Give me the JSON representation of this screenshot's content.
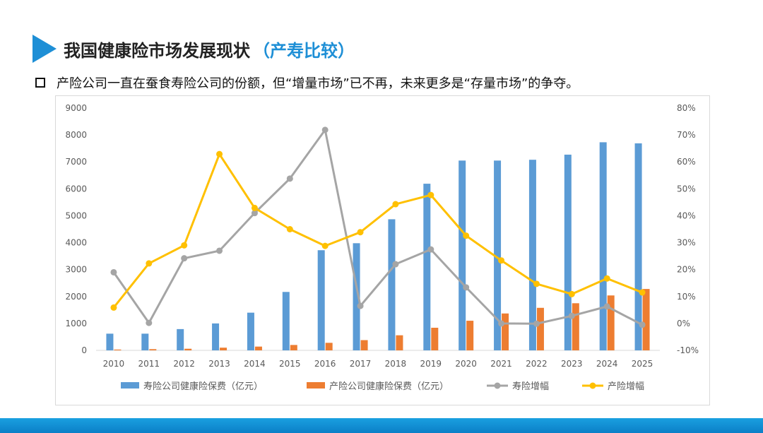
{
  "header": {
    "title": "我国健康险市场发展现状",
    "title_paren": "（产寿比较）",
    "bullet": "产险公司一直在蚕食寿险公司的份额，但“增量市场”已不再，未来更多是“存量市场”的争夺。"
  },
  "colors": {
    "accent": "#1e8fd6",
    "life_bar": "#5b9bd5",
    "pc_bar": "#ed7d31",
    "life_growth": "#a5a5a5",
    "pc_growth": "#ffc000"
  },
  "chart_data": {
    "type": "bar",
    "categories": [
      "2010",
      "2011",
      "2012",
      "2013",
      "2014",
      "2015",
      "2016",
      "2017",
      "2018",
      "2019",
      "2020",
      "2021",
      "2022",
      "2023",
      "2024",
      "2025"
    ],
    "y_left": {
      "min": 0,
      "max": 9000,
      "ticks": [
        "0",
        "1000",
        "2000",
        "3000",
        "4000",
        "5000",
        "6000",
        "7000",
        "8000",
        "9000"
      ]
    },
    "y_right": {
      "min": -0.1,
      "max": 0.8,
      "ticks": [
        "-10%",
        "0%",
        "10%",
        "20%",
        "30%",
        "40%",
        "50%",
        "60%",
        "70%",
        "80%"
      ]
    },
    "grid": false,
    "legend_position": "bottom",
    "series": [
      {
        "name": "寿险公司健康险保费（亿元）",
        "kind": "bar",
        "axis": "left",
        "values": [
          620,
          620,
          790,
          1000,
          1400,
          2170,
          3720,
          3980,
          4870,
          6190,
          7050,
          7050,
          7080,
          7270,
          7730,
          7690
        ]
      },
      {
        "name": "产险公司健康险保费（亿元）",
        "kind": "bar",
        "axis": "left",
        "values": [
          30,
          45,
          60,
          100,
          140,
          200,
          280,
          380,
          560,
          840,
          1100,
          1370,
          1580,
          1750,
          2040,
          2280
        ]
      },
      {
        "name": "寿险增幅",
        "kind": "line",
        "axis": "right",
        "values": [
          0.19,
          0.002,
          0.242,
          0.27,
          0.41,
          0.538,
          0.719,
          0.065,
          0.22,
          0.275,
          0.134,
          0.0,
          -0.001,
          0.028,
          0.063,
          -0.005
        ]
      },
      {
        "name": "产险增幅",
        "kind": "line",
        "axis": "right",
        "values": [
          0.059,
          0.223,
          0.29,
          0.629,
          0.429,
          0.35,
          0.288,
          0.339,
          0.443,
          0.477,
          0.326,
          0.234,
          0.147,
          0.109,
          0.167,
          0.115
        ]
      }
    ]
  }
}
